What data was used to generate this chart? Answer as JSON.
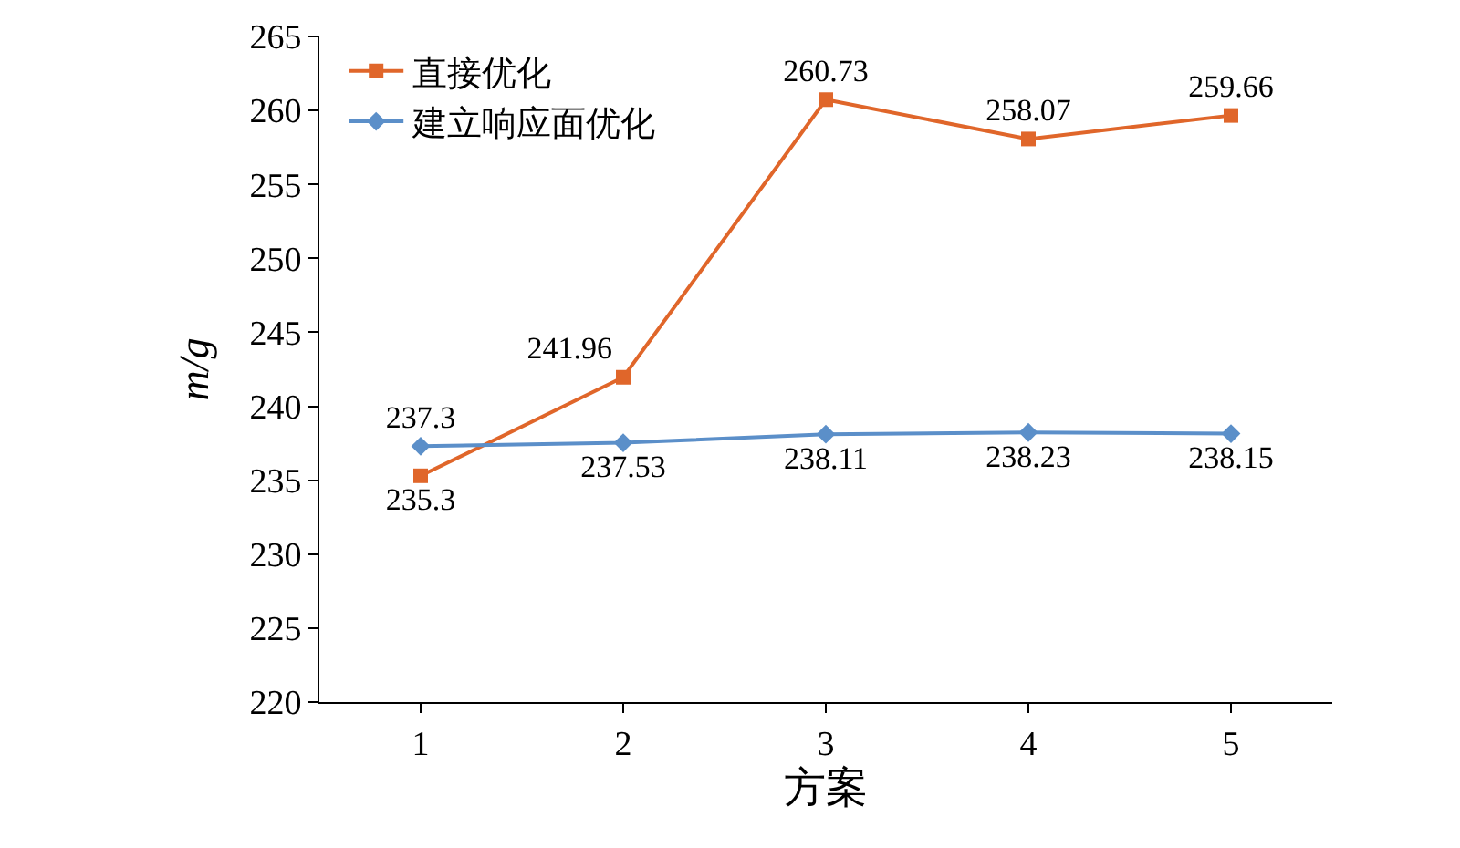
{
  "chart_data": {
    "type": "line",
    "xlabel": "方案",
    "ylabel": "m/g",
    "categories": [
      "1",
      "2",
      "3",
      "4",
      "5"
    ],
    "series": [
      {
        "name": "直接优化",
        "color": "#e0662a",
        "marker": "square",
        "values": [
          235.3,
          241.96,
          260.73,
          258.07,
          259.66
        ]
      },
      {
        "name": "建立响应面优化",
        "color": "#5b8fc9",
        "marker": "diamond",
        "values": [
          237.3,
          237.53,
          238.11,
          238.23,
          238.15
        ]
      }
    ],
    "ylim": [
      220,
      265
    ],
    "yticks": [
      220,
      225,
      230,
      235,
      240,
      245,
      250,
      255,
      260,
      265
    ],
    "legend": "top left",
    "data_labels": true,
    "line_style": "solid"
  }
}
